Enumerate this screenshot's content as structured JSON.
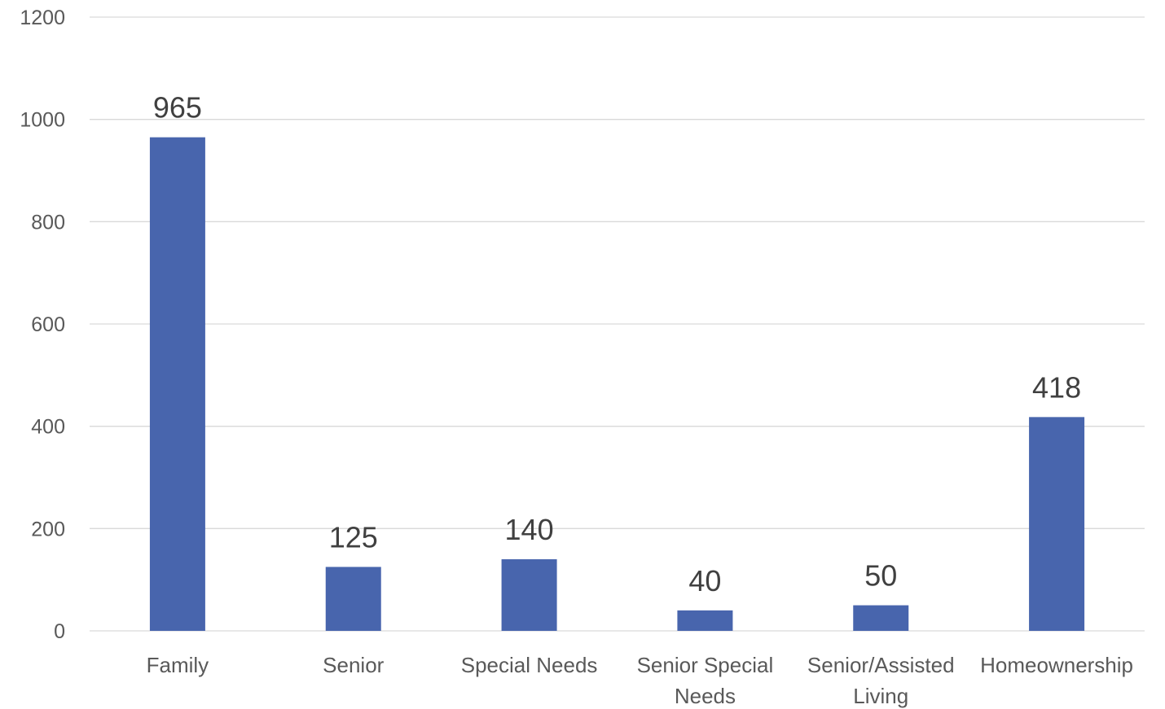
{
  "chart_data": {
    "type": "bar",
    "categories": [
      [
        "Family"
      ],
      [
        "Senior"
      ],
      [
        "Special Needs"
      ],
      [
        "Senior Special",
        "Needs"
      ],
      [
        "Senior/Assisted",
        "Living"
      ],
      [
        "Homeownership"
      ]
    ],
    "values": [
      965,
      125,
      140,
      40,
      50,
      418
    ],
    "data_labels": [
      "965",
      "125",
      "140",
      "40",
      "50",
      "418"
    ],
    "yticks": [
      "0",
      "200",
      "400",
      "600",
      "800",
      "1000",
      "1200"
    ],
    "ylim": [
      0,
      1200
    ],
    "grid": true,
    "legend": "none",
    "bar_color": "#4865ad"
  }
}
